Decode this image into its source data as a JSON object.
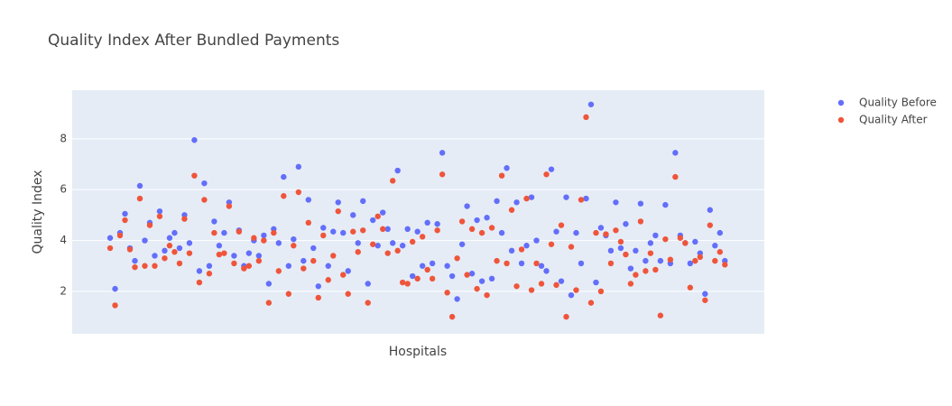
{
  "chart_data": {
    "type": "scatter",
    "title": "Quality Index After Bundled Payments",
    "x_label": "Hospitals",
    "y_label": "Quality Index",
    "x": [
      0,
      2,
      4,
      6,
      8,
      10,
      12,
      14,
      16,
      18,
      20,
      22,
      24,
      26,
      28,
      30,
      32,
      34,
      36,
      38,
      40,
      42,
      44,
      46,
      48,
      50,
      52,
      54,
      56,
      58,
      60,
      62,
      64,
      66,
      68,
      70,
      72,
      74,
      76,
      78,
      80,
      82,
      84,
      86,
      88,
      90,
      92,
      94,
      96,
      98,
      100,
      102,
      104,
      106,
      108,
      110,
      112,
      114,
      116,
      118,
      120,
      122,
      124,
      126,
      128,
      130,
      132,
      134,
      136,
      138,
      140,
      142,
      144,
      146,
      148,
      150,
      152,
      154,
      156,
      158,
      160,
      162,
      164,
      166,
      168,
      170,
      172,
      174,
      176,
      178,
      180,
      182,
      184,
      186,
      188,
      190,
      192,
      194,
      196,
      198,
      200,
      202,
      204,
      206,
      208,
      210,
      212,
      214,
      216,
      218,
      220,
      222,
      224,
      226,
      228,
      230,
      232,
      234,
      236,
      238,
      240,
      242,
      244,
      246,
      248
    ],
    "series": [
      {
        "name": "Quality Before",
        "color": "#636efa",
        "values": [
          4.1,
          2.1,
          4.3,
          5.05,
          3.7,
          3.2,
          6.15,
          4.0,
          4.7,
          3.4,
          5.15,
          3.6,
          4.1,
          4.3,
          3.7,
          5.0,
          3.9,
          7.95,
          2.8,
          6.25,
          3.0,
          4.75,
          3.8,
          4.3,
          5.5,
          3.4,
          4.4,
          3.0,
          3.5,
          4.0,
          3.4,
          4.2,
          2.3,
          4.45,
          3.9,
          6.5,
          3.0,
          4.05,
          6.9,
          3.2,
          5.6,
          3.7,
          2.2,
          4.5,
          3.0,
          4.35,
          5.5,
          4.3,
          2.8,
          5.0,
          3.9,
          5.55,
          2.3,
          4.8,
          3.8,
          5.1,
          4.45,
          3.9,
          6.75,
          3.8,
          4.45,
          2.6,
          4.35,
          3.0,
          4.7,
          3.1,
          4.65,
          7.45,
          3.0,
          2.6,
          1.7,
          3.85,
          5.35,
          2.7,
          4.8,
          2.4,
          4.9,
          2.5,
          5.55,
          4.3,
          6.85,
          3.6,
          5.5,
          3.1,
          3.8,
          5.7,
          4.0,
          3.0,
          2.8,
          6.8,
          4.35,
          2.4,
          5.7,
          1.85,
          4.3,
          3.1,
          5.65,
          9.35,
          2.35,
          4.5,
          4.2,
          3.6,
          5.5,
          3.7,
          4.65,
          2.9,
          3.6,
          5.45,
          3.2,
          3.9,
          4.2,
          3.2,
          5.4,
          3.1,
          7.45,
          4.2,
          3.9,
          3.1,
          3.95,
          3.5,
          1.9,
          5.2,
          3.8,
          4.3,
          3.2
        ]
      },
      {
        "name": "Quality After",
        "color": "#ef553b",
        "values": [
          3.7,
          1.45,
          4.2,
          4.8,
          3.65,
          2.95,
          5.65,
          3.0,
          4.6,
          3.0,
          4.95,
          3.3,
          3.8,
          3.55,
          3.1,
          4.85,
          3.5,
          6.55,
          2.35,
          5.6,
          2.7,
          4.3,
          3.45,
          3.5,
          5.35,
          3.1,
          4.35,
          2.9,
          3.0,
          4.1,
          3.2,
          4.0,
          1.55,
          4.3,
          2.8,
          5.75,
          1.9,
          3.8,
          5.9,
          2.9,
          4.7,
          3.2,
          1.75,
          4.2,
          2.45,
          3.4,
          5.15,
          2.65,
          1.9,
          4.35,
          3.55,
          4.4,
          1.55,
          3.85,
          4.95,
          4.45,
          3.5,
          6.35,
          3.6,
          2.35,
          2.3,
          3.95,
          2.5,
          4.15,
          2.85,
          2.5,
          4.4,
          6.6,
          1.95,
          1.0,
          3.3,
          4.75,
          2.65,
          4.45,
          2.1,
          4.3,
          1.85,
          4.5,
          3.2,
          6.55,
          3.1,
          5.2,
          2.2,
          3.65,
          5.65,
          2.05,
          3.1,
          2.3,
          6.6,
          3.85,
          2.25,
          4.6,
          1.0,
          3.75,
          2.05,
          5.6,
          8.85,
          1.55,
          4.3,
          2.0,
          4.25,
          3.1,
          4.4,
          3.95,
          3.45,
          2.3,
          2.65,
          4.75,
          2.8,
          3.5,
          2.85,
          1.05,
          4.05,
          3.25,
          6.5,
          4.1,
          3.9,
          2.15,
          3.2,
          3.35,
          1.65,
          4.6,
          3.2,
          3.55,
          3.05
        ]
      }
    ],
    "xlim": [
      -15.3,
      263.9
    ],
    "ylim": [
      0.33,
      9.91
    ],
    "yticks": [
      2,
      4,
      6,
      8
    ],
    "grid": true,
    "legend": "right"
  }
}
